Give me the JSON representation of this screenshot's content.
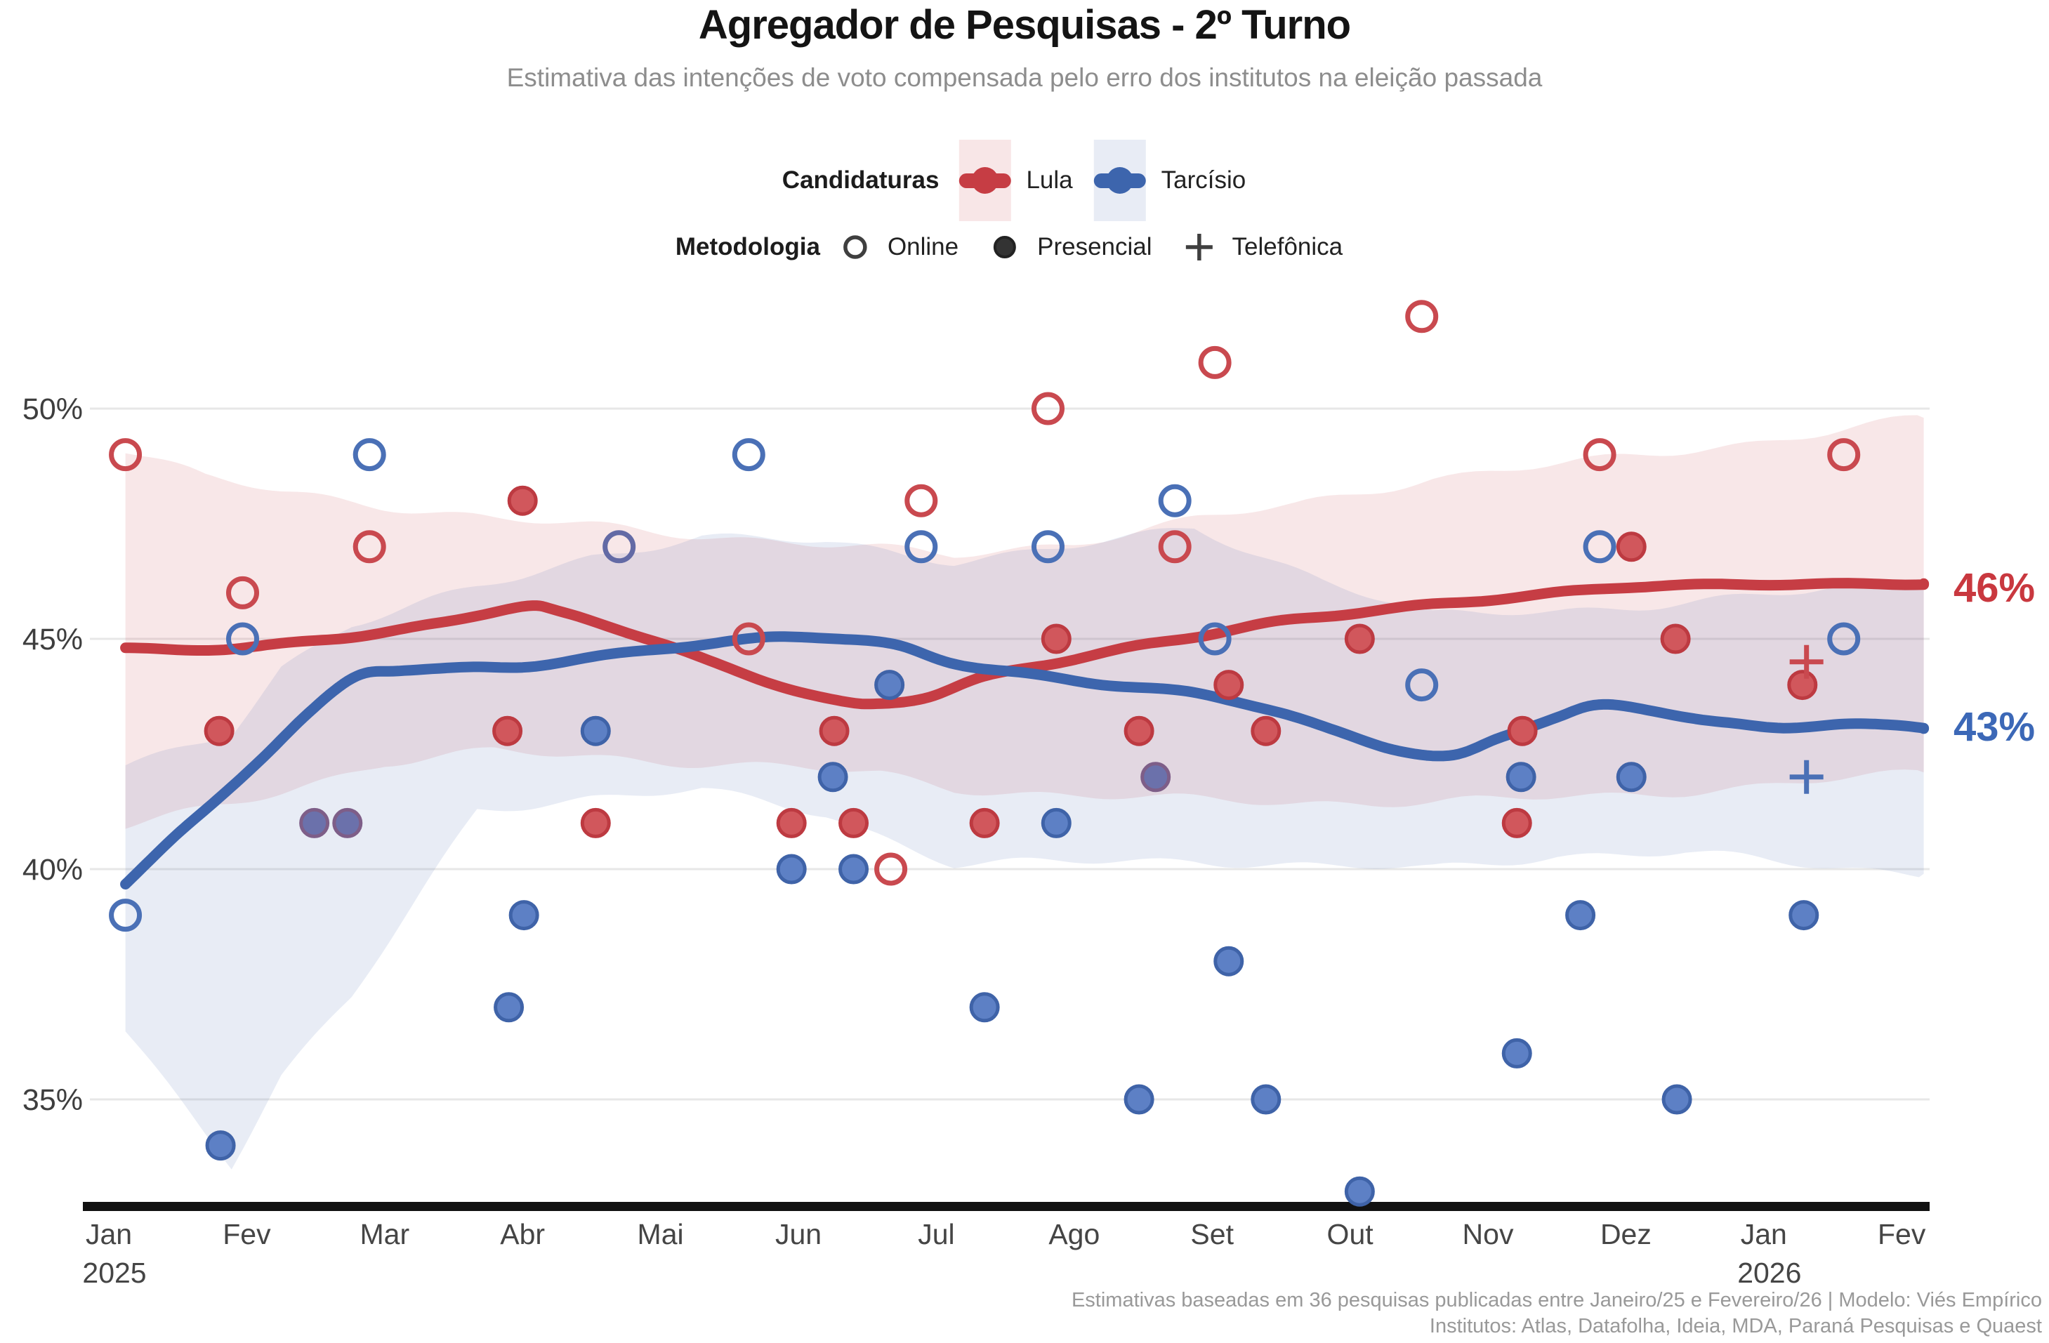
{
  "title": "Agregador de Pesquisas - 2º Turno",
  "subtitle": "Estimativa das intenções de voto compensada pelo erro dos institutos na eleição passada",
  "legend": {
    "candidaturas_label": "Candidaturas",
    "metodologia_label": "Metodologia",
    "candidates": [
      {
        "name": "Lula",
        "color": "#c63d44",
        "band": "rgba(201,61,68,0.13)"
      },
      {
        "name": "Tarcísio",
        "color": "#3d65ad",
        "band": "rgba(79,111,180,0.13)"
      }
    ],
    "methods": [
      {
        "name": "Online",
        "marker": "open-circle"
      },
      {
        "name": "Presencial",
        "marker": "filled-circle"
      },
      {
        "name": "Telefônica",
        "marker": "plus"
      }
    ]
  },
  "end_labels": {
    "lula": "46%",
    "tarcisio": "43%"
  },
  "footer": {
    "line1": "Estimativas baseadas em 36 pesquisas publicadas entre Janeiro/25 e Fevereiro/26 | Modelo: Viés Empírico",
    "line2": "Institutos: Atlas, Datafolha, Ideia, MDA, Paraná Pesquisas e Quaest"
  },
  "chart_data": {
    "type": "line",
    "x_axis": {
      "months": [
        "Jan",
        "Fev",
        "Mar",
        "Abr",
        "Mai",
        "Jun",
        "Jul",
        "Ago",
        "Set",
        "Out",
        "Nov",
        "Dez",
        "Jan",
        "Fev"
      ],
      "years": {
        "0": "2025",
        "12": "2026"
      }
    },
    "y_axis": {
      "ticks": [
        35,
        40,
        45,
        50
      ],
      "tick_suffix": "%",
      "range": [
        32,
        53
      ],
      "grid": true
    },
    "series": [
      {
        "name": "Lula",
        "line_color": "#c63d44",
        "band_color": "rgba(201,61,68,0.12)",
        "end_value": 46,
        "trend": [
          [
            0.12,
            44.8
          ],
          [
            0.6,
            44.78
          ],
          [
            1.0,
            44.8
          ],
          [
            1.5,
            44.95
          ],
          [
            1.92,
            45.1
          ],
          [
            2.4,
            45.35
          ],
          [
            3.0,
            45.72
          ],
          [
            3.3,
            45.55
          ],
          [
            3.95,
            44.95
          ],
          [
            4.4,
            44.45
          ],
          [
            4.92,
            43.95
          ],
          [
            5.35,
            43.62
          ],
          [
            5.6,
            43.6
          ],
          [
            5.95,
            43.75
          ],
          [
            6.35,
            44.15
          ],
          [
            6.9,
            44.5
          ],
          [
            7.45,
            44.85
          ],
          [
            7.95,
            45.1
          ],
          [
            8.45,
            45.35
          ],
          [
            8.95,
            45.52
          ],
          [
            9.6,
            45.75
          ],
          [
            10.2,
            45.92
          ],
          [
            10.9,
            46.1
          ],
          [
            11.5,
            46.15
          ],
          [
            12.2,
            46.2
          ],
          [
            13.16,
            46.2
          ]
        ],
        "band": [
          [
            0.12,
            49.1,
            40.9
          ],
          [
            0.7,
            48.5,
            41.3
          ],
          [
            1.25,
            48.2,
            41.7
          ],
          [
            2.0,
            47.9,
            42.3
          ],
          [
            2.8,
            47.6,
            42.55
          ],
          [
            3.5,
            47.45,
            42.45
          ],
          [
            4.3,
            47.25,
            42.3
          ],
          [
            5.0,
            47.1,
            42.2
          ],
          [
            5.6,
            46.95,
            42.05
          ],
          [
            6.13,
            46.8,
            41.75
          ],
          [
            7.0,
            47.1,
            41.6
          ],
          [
            7.9,
            47.6,
            41.5
          ],
          [
            8.6,
            47.9,
            41.45
          ],
          [
            9.6,
            48.5,
            41.45
          ],
          [
            10.9,
            48.9,
            41.6
          ],
          [
            12.0,
            49.3,
            41.8
          ],
          [
            13.16,
            49.8,
            42.1
          ]
        ]
      },
      {
        "name": "Tarcísio",
        "line_color": "#3d65ad",
        "band_color": "rgba(79,111,180,0.13)",
        "end_value": 43,
        "trend": [
          [
            0.12,
            39.68
          ],
          [
            0.45,
            40.6
          ],
          [
            0.75,
            41.4
          ],
          [
            1.1,
            42.4
          ],
          [
            1.45,
            43.4
          ],
          [
            1.8,
            44.2
          ],
          [
            2.1,
            44.33
          ],
          [
            2.6,
            44.35
          ],
          [
            3.0,
            44.38
          ],
          [
            3.5,
            44.6
          ],
          [
            4.0,
            44.8
          ],
          [
            4.5,
            44.95
          ],
          [
            4.9,
            45.03
          ],
          [
            5.3,
            45.0
          ],
          [
            5.7,
            44.85
          ],
          [
            6.1,
            44.5
          ],
          [
            6.6,
            44.28
          ],
          [
            7.1,
            44.05
          ],
          [
            7.6,
            43.9
          ],
          [
            7.97,
            43.75
          ],
          [
            8.45,
            43.45
          ],
          [
            8.9,
            43.0
          ],
          [
            9.35,
            42.6
          ],
          [
            9.75,
            42.45
          ],
          [
            10.1,
            42.85
          ],
          [
            10.5,
            43.3
          ],
          [
            10.8,
            43.55
          ],
          [
            11.2,
            43.45
          ],
          [
            11.7,
            43.2
          ],
          [
            12.1,
            43.05
          ],
          [
            12.55,
            43.15
          ],
          [
            12.9,
            43.1
          ],
          [
            13.16,
            43.05
          ]
        ],
        "band": [
          [
            0.12,
            42.2,
            36.5
          ],
          [
            0.89,
            43.0,
            33.6
          ],
          [
            1.25,
            44.4,
            35.5
          ],
          [
            1.76,
            45.3,
            37.2
          ],
          [
            2.67,
            46.1,
            41.3
          ],
          [
            3.5,
            46.8,
            41.55
          ],
          [
            4.3,
            47.2,
            41.7
          ],
          [
            5.2,
            47.1,
            41.2
          ],
          [
            6.13,
            46.7,
            40.1
          ],
          [
            7.0,
            47.0,
            40.15
          ],
          [
            7.87,
            47.4,
            40.2
          ],
          [
            8.8,
            46.3,
            40.05
          ],
          [
            9.6,
            45.5,
            40.0
          ],
          [
            10.5,
            45.6,
            40.3
          ],
          [
            11.43,
            45.8,
            40.35
          ],
          [
            12.3,
            46.0,
            40.1
          ],
          [
            13.16,
            46.3,
            39.9
          ]
        ]
      }
    ],
    "marker_styles": {
      "lula": {
        "open_stroke": "#c9494f",
        "fill": "#d1575c",
        "ring": "#bd3a41",
        "plus": "#c9494f"
      },
      "tarcisio": {
        "open_stroke": "#4a70b6",
        "fill": "#5d80c5",
        "ring": "#3f63a8",
        "plus": "#4a70b6"
      },
      "overlap": {
        "open_stroke": "#636aa5",
        "fill": "#6b71ab",
        "ring": "#7e5e88",
        "plus": "#636aa5"
      }
    },
    "polls": [
      {
        "x": 0.12,
        "v": 49,
        "cand": "lula",
        "method": "online"
      },
      {
        "x": 0.97,
        "v": 46,
        "cand": "lula",
        "method": "online"
      },
      {
        "x": 1.89,
        "v": 47,
        "cand": "lula",
        "method": "online"
      },
      {
        "x": 4.64,
        "v": 45,
        "cand": "lula",
        "method": "online"
      },
      {
        "x": 5.67,
        "v": 40,
        "cand": "lula",
        "method": "online"
      },
      {
        "x": 5.89,
        "v": 48,
        "cand": "lula",
        "method": "online"
      },
      {
        "x": 6.81,
        "v": 50,
        "cand": "lula",
        "method": "online"
      },
      {
        "x": 7.73,
        "v": 47,
        "cand": "lula",
        "method": "online"
      },
      {
        "x": 8.02,
        "v": 51,
        "cand": "lula",
        "method": "online"
      },
      {
        "x": 9.52,
        "v": 52,
        "cand": "lula",
        "method": "online"
      },
      {
        "x": 10.81,
        "v": 49,
        "cand": "lula",
        "method": "online"
      },
      {
        "x": 12.58,
        "v": 49,
        "cand": "lula",
        "method": "online"
      },
      {
        "x": 0.12,
        "v": 39,
        "cand": "tarcisio",
        "method": "online"
      },
      {
        "x": 0.97,
        "v": 45,
        "cand": "tarcisio",
        "method": "online"
      },
      {
        "x": 1.89,
        "v": 49,
        "cand": "tarcisio",
        "method": "online"
      },
      {
        "x": 4.64,
        "v": 49,
        "cand": "tarcisio",
        "method": "online"
      },
      {
        "x": 5.89,
        "v": 47,
        "cand": "tarcisio",
        "method": "online"
      },
      {
        "x": 6.81,
        "v": 47,
        "cand": "tarcisio",
        "method": "online"
      },
      {
        "x": 7.73,
        "v": 48,
        "cand": "tarcisio",
        "method": "online"
      },
      {
        "x": 8.02,
        "v": 45,
        "cand": "tarcisio",
        "method": "online"
      },
      {
        "x": 9.52,
        "v": 44,
        "cand": "tarcisio",
        "method": "online"
      },
      {
        "x": 10.81,
        "v": 47,
        "cand": "tarcisio",
        "method": "online"
      },
      {
        "x": 12.58,
        "v": 45,
        "cand": "tarcisio",
        "method": "online"
      },
      {
        "x": 3.7,
        "v": 47,
        "cand": "overlap",
        "method": "online"
      },
      {
        "x": 0.8,
        "v": 43,
        "cand": "lula",
        "method": "presencial"
      },
      {
        "x": 2.89,
        "v": 43,
        "cand": "lula",
        "method": "presencial"
      },
      {
        "x": 3.0,
        "v": 48,
        "cand": "lula",
        "method": "presencial"
      },
      {
        "x": 3.53,
        "v": 41,
        "cand": "lula",
        "method": "presencial"
      },
      {
        "x": 4.95,
        "v": 41,
        "cand": "lula",
        "method": "presencial"
      },
      {
        "x": 5.26,
        "v": 43,
        "cand": "lula",
        "method": "presencial"
      },
      {
        "x": 5.4,
        "v": 41,
        "cand": "lula",
        "method": "presencial"
      },
      {
        "x": 6.35,
        "v": 41,
        "cand": "lula",
        "method": "presencial"
      },
      {
        "x": 6.87,
        "v": 45,
        "cand": "lula",
        "method": "presencial"
      },
      {
        "x": 7.47,
        "v": 43,
        "cand": "lula",
        "method": "presencial"
      },
      {
        "x": 8.12,
        "v": 44,
        "cand": "lula",
        "method": "presencial"
      },
      {
        "x": 8.39,
        "v": 43,
        "cand": "lula",
        "method": "presencial"
      },
      {
        "x": 9.07,
        "v": 45,
        "cand": "lula",
        "method": "presencial"
      },
      {
        "x": 10.21,
        "v": 41,
        "cand": "lula",
        "method": "presencial"
      },
      {
        "x": 10.25,
        "v": 43,
        "cand": "lula",
        "method": "presencial"
      },
      {
        "x": 11.04,
        "v": 47,
        "cand": "lula",
        "method": "presencial"
      },
      {
        "x": 11.36,
        "v": 45,
        "cand": "lula",
        "method": "presencial"
      },
      {
        "x": 12.28,
        "v": 44,
        "cand": "lula",
        "method": "presencial"
      },
      {
        "x": 0.81,
        "v": 34,
        "cand": "tarcisio",
        "method": "presencial"
      },
      {
        "x": 2.9,
        "v": 37,
        "cand": "tarcisio",
        "method": "presencial"
      },
      {
        "x": 3.01,
        "v": 39,
        "cand": "tarcisio",
        "method": "presencial"
      },
      {
        "x": 3.53,
        "v": 43,
        "cand": "tarcisio",
        "method": "presencial"
      },
      {
        "x": 4.95,
        "v": 40,
        "cand": "tarcisio",
        "method": "presencial"
      },
      {
        "x": 5.25,
        "v": 42,
        "cand": "tarcisio",
        "method": "presencial"
      },
      {
        "x": 5.4,
        "v": 40,
        "cand": "tarcisio",
        "method": "presencial"
      },
      {
        "x": 5.66,
        "v": 44,
        "cand": "tarcisio",
        "method": "presencial"
      },
      {
        "x": 6.35,
        "v": 37,
        "cand": "tarcisio",
        "method": "presencial"
      },
      {
        "x": 6.87,
        "v": 41,
        "cand": "tarcisio",
        "method": "presencial"
      },
      {
        "x": 7.47,
        "v": 35,
        "cand": "tarcisio",
        "method": "presencial"
      },
      {
        "x": 8.12,
        "v": 38,
        "cand": "tarcisio",
        "method": "presencial"
      },
      {
        "x": 8.39,
        "v": 35,
        "cand": "tarcisio",
        "method": "presencial"
      },
      {
        "x": 9.07,
        "v": 33,
        "cand": "tarcisio",
        "method": "presencial"
      },
      {
        "x": 10.21,
        "v": 36,
        "cand": "tarcisio",
        "method": "presencial"
      },
      {
        "x": 10.24,
        "v": 42,
        "cand": "tarcisio",
        "method": "presencial"
      },
      {
        "x": 10.67,
        "v": 39,
        "cand": "tarcisio",
        "method": "presencial"
      },
      {
        "x": 11.04,
        "v": 42,
        "cand": "tarcisio",
        "method": "presencial"
      },
      {
        "x": 11.37,
        "v": 35,
        "cand": "tarcisio",
        "method": "presencial"
      },
      {
        "x": 12.29,
        "v": 39,
        "cand": "tarcisio",
        "method": "presencial"
      },
      {
        "x": 1.49,
        "v": 41,
        "cand": "overlap",
        "method": "presencial"
      },
      {
        "x": 1.73,
        "v": 41,
        "cand": "overlap",
        "method": "presencial"
      },
      {
        "x": 7.59,
        "v": 42,
        "cand": "overlap",
        "method": "presencial"
      },
      {
        "x": 12.31,
        "v": 44.5,
        "cand": "lula",
        "method": "telefonica"
      },
      {
        "x": 12.31,
        "v": 42,
        "cand": "tarcisio",
        "method": "telefonica"
      }
    ]
  }
}
